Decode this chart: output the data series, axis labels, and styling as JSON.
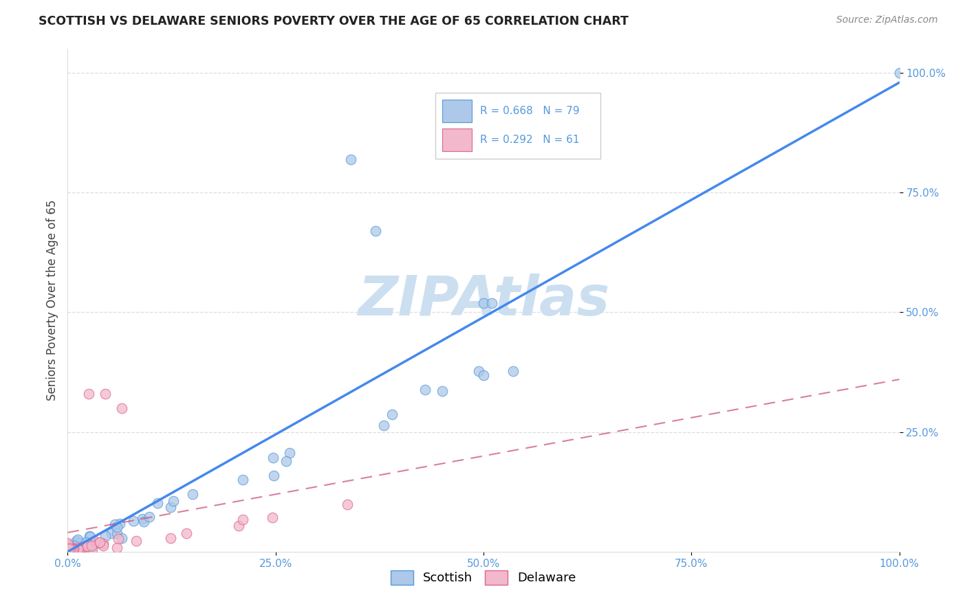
{
  "title": "SCOTTISH VS DELAWARE SENIORS POVERTY OVER THE AGE OF 65 CORRELATION CHART",
  "source": "Source: ZipAtlas.com",
  "ylabel": "Seniors Poverty Over the Age of 65",
  "background_color": "#ffffff",
  "grid_color": "#dddddd",
  "r_scottish": 0.668,
  "n_scottish": 79,
  "r_delaware": 0.292,
  "n_delaware": 61,
  "scottish_fill": "#adc8e8",
  "scottish_edge": "#5599dd",
  "scottish_line": "#4488ee",
  "delaware_fill": "#f2b8cc",
  "delaware_edge": "#dd6688",
  "delaware_line": "#cc5577",
  "watermark_color": "#ccdff0",
  "tick_color": "#5599dd",
  "title_color": "#222222",
  "ylabel_color": "#444444",
  "source_color": "#888888"
}
